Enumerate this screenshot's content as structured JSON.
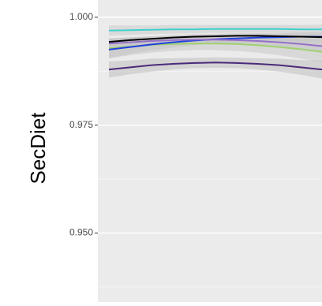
{
  "chart_data": {
    "type": "line",
    "ylabel": "SecDiet",
    "ylim": [
      0.934,
      1.004
    ],
    "y_ticks": [
      {
        "value": 1.0,
        "label": "1.000"
      },
      {
        "value": 0.975,
        "label": "0.975"
      },
      {
        "value": 0.95,
        "label": "0.950"
      }
    ],
    "y_minor_grid": [
      0.9875,
      0.9625,
      0.9375
    ],
    "grid": true,
    "x": [
      0,
      1,
      2,
      3,
      4,
      5,
      6,
      7,
      8,
      9,
      10
    ],
    "series": [
      {
        "color": "#3fd1cc",
        "band_color": "#cccccc",
        "values": [
          0.9969,
          0.997,
          0.9971,
          0.9972,
          0.9972,
          0.9973,
          0.9973,
          0.9973,
          0.9973,
          0.9972,
          0.9972
        ],
        "lower": [
          0.9957,
          0.9959,
          0.9961,
          0.9962,
          0.9963,
          0.9964,
          0.9964,
          0.9964,
          0.9963,
          0.9962,
          0.9961
        ],
        "upper": [
          0.9981,
          0.9981,
          0.9981,
          0.9982,
          0.9982,
          0.9982,
          0.9982,
          0.9982,
          0.9982,
          0.9982,
          0.9983
        ]
      },
      {
        "color": "#a0d070",
        "band_color": "#c8c8c8",
        "values": [
          0.9928,
          0.9932,
          0.9936,
          0.9938,
          0.9939,
          0.9939,
          0.9938,
          0.9935,
          0.9931,
          0.9926,
          0.992
        ],
        "lower": [
          0.9905,
          0.9912,
          0.9918,
          0.9922,
          0.9924,
          0.9924,
          0.9922,
          0.9918,
          0.9912,
          0.9904,
          0.9896
        ],
        "upper": [
          0.9951,
          0.9952,
          0.9954,
          0.9955,
          0.9955,
          0.9955,
          0.9955,
          0.9953,
          0.9951,
          0.9948,
          0.9944
        ]
      },
      {
        "color": "#2040e0",
        "band_color": "#c4c4c4",
        "values": [
          0.9925,
          0.9931,
          0.9937,
          0.9942,
          0.9946,
          0.9949,
          0.9951,
          0.9953,
          0.9954,
          0.9955,
          0.9955
        ],
        "lower": [
          0.9905,
          0.9915,
          0.9923,
          0.993,
          0.9935,
          0.9939,
          0.9942,
          0.9944,
          0.9945,
          0.9945,
          0.9944
        ],
        "upper": [
          0.9945,
          0.9947,
          0.9951,
          0.9954,
          0.9957,
          0.9959,
          0.996,
          0.9962,
          0.9963,
          0.9965,
          0.9966
        ]
      },
      {
        "color": "#9470c8",
        "band_color": "#c4c4c4",
        "values": [
          0.9939,
          0.9942,
          0.9945,
          0.9947,
          0.9948,
          0.9948,
          0.9947,
          0.9945,
          0.9942,
          0.9938,
          0.9933
        ],
        "lower": [
          0.9927,
          0.9931,
          0.9935,
          0.9937,
          0.9938,
          0.9938,
          0.9937,
          0.9934,
          0.993,
          0.9925,
          0.9919
        ],
        "upper": [
          0.9951,
          0.9953,
          0.9955,
          0.9957,
          0.9958,
          0.9958,
          0.9957,
          0.9956,
          0.9954,
          0.9951,
          0.9947
        ]
      },
      {
        "color": "#000000",
        "band_color": "#c4c4c4",
        "values": [
          0.9943,
          0.9947,
          0.995,
          0.9953,
          0.9955,
          0.9956,
          0.9957,
          0.9957,
          0.9956,
          0.9955,
          0.9954
        ],
        "lower": [
          0.9935,
          0.994,
          0.9944,
          0.9947,
          0.9949,
          0.995,
          0.9951,
          0.9951,
          0.995,
          0.9948,
          0.9946
        ],
        "upper": [
          0.9951,
          0.9954,
          0.9956,
          0.9959,
          0.9961,
          0.9962,
          0.9963,
          0.9963,
          0.9962,
          0.9962,
          0.9962
        ]
      },
      {
        "color": "#4b2a7a",
        "band_color": "#c0c0c0",
        "values": [
          0.9879,
          0.9884,
          0.9889,
          0.9892,
          0.9894,
          0.9895,
          0.9894,
          0.9892,
          0.9889,
          0.9884,
          0.9879
        ],
        "lower": [
          0.986,
          0.9868,
          0.9874,
          0.9879,
          0.9882,
          0.9883,
          0.9882,
          0.9879,
          0.9874,
          0.9867,
          0.9858
        ],
        "upper": [
          0.9898,
          0.99,
          0.9904,
          0.9905,
          0.9906,
          0.9907,
          0.9906,
          0.9905,
          0.9904,
          0.9901,
          0.99
        ]
      }
    ]
  }
}
